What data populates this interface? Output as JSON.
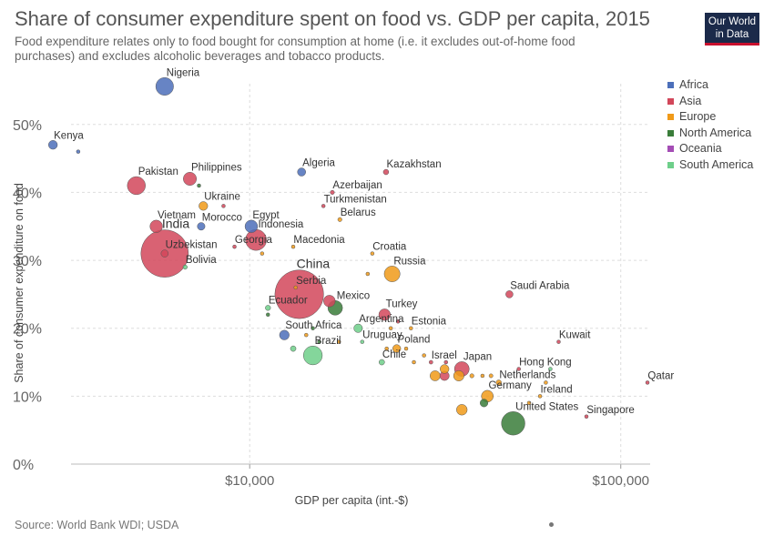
{
  "header": {
    "title": "Share of consumer expenditure spent on food vs. GDP per capita, 2015",
    "subtitle": "Food expenditure relates only to food bought for consumption at home (i.e. it excludes out-of-home food purchases) and excludes alcoholic beverages and tobacco products.",
    "logo_line1": "Our World",
    "logo_line2": "in Data"
  },
  "footer": {
    "source": "Source: World Bank WDI; USDA"
  },
  "colors": {
    "Africa": "#4c6fba",
    "Asia": "#d2475a",
    "Europe": "#f09a19",
    "North America": "#3a7d3a",
    "Oceania": "#a44db5",
    "South America": "#6ecf8a"
  },
  "chart_data": {
    "type": "scatter",
    "title": "Share of consumer expenditure spent on food vs. GDP per capita, 2015",
    "xlabel": "GDP per capita (int.-$)",
    "ylabel": "Share of consumer expenditure on food",
    "xscale": "log",
    "xlim": [
      3300,
      120000
    ],
    "ylim": [
      0,
      56
    ],
    "x_ticks": [
      10000,
      100000
    ],
    "x_tick_labels": [
      "$10,000",
      "$100,000"
    ],
    "y_ticks": [
      0,
      10,
      20,
      30,
      40,
      50
    ],
    "y_tick_labels": [
      "0%",
      "10%",
      "20%",
      "30%",
      "40%",
      "50%"
    ],
    "grid": true,
    "legend": "right",
    "legend_entries": [
      "Africa",
      "Asia",
      "Europe",
      "North America",
      "Oceania",
      "South America"
    ],
    "points": [
      {
        "label": "Nigeria",
        "region": "Africa",
        "x": 5900,
        "y": 55.6,
        "size": 182
      },
      {
        "label": "Kenya",
        "region": "Africa",
        "x": 2950,
        "y": 47.0,
        "size": 46
      },
      {
        "label": "",
        "region": "Africa",
        "x": 3450,
        "y": 46.0,
        "size": 5
      },
      {
        "label": "Philippines",
        "region": "Asia",
        "x": 6900,
        "y": 42.0,
        "size": 101
      },
      {
        "label": "Pakistan",
        "region": "Asia",
        "x": 4950,
        "y": 41.0,
        "size": 189
      },
      {
        "label": "Algeria",
        "region": "Africa",
        "x": 13800,
        "y": 43.0,
        "size": 39
      },
      {
        "label": "Kazakhstan",
        "region": "Asia",
        "x": 23300,
        "y": 43.0,
        "size": 17
      },
      {
        "label": "Azerbaijan",
        "region": "Asia",
        "x": 16700,
        "y": 40.0,
        "size": 10
      },
      {
        "label": "",
        "region": "North America",
        "x": 7300,
        "y": 41.0,
        "size": 3
      },
      {
        "label": "Ukraine",
        "region": "Europe",
        "x": 7500,
        "y": 38.0,
        "size": 45
      },
      {
        "label": "",
        "region": "Asia",
        "x": 8500,
        "y": 38.0,
        "size": 3
      },
      {
        "label": "Turkmenistan",
        "region": "Asia",
        "x": 15800,
        "y": 38.0,
        "size": 6
      },
      {
        "label": "Belarus",
        "region": "Europe",
        "x": 17500,
        "y": 36.0,
        "size": 10
      },
      {
        "label": "Vietnam",
        "region": "Asia",
        "x": 5600,
        "y": 35.0,
        "size": 92
      },
      {
        "label": "Morocco",
        "region": "Africa",
        "x": 7400,
        "y": 35.0,
        "size": 34
      },
      {
        "label": "Egypt",
        "region": "Africa",
        "x": 10100,
        "y": 35.0,
        "size": 92
      },
      {
        "label": "Indonesia",
        "region": "Asia",
        "x": 10400,
        "y": 33.0,
        "size": 255
      },
      {
        "label": "India",
        "region": "Asia",
        "x": 5900,
        "y": 31.0,
        "size": 1310
      },
      {
        "label": "Uzbekistan",
        "region": "Asia",
        "x": 5900,
        "y": 31.0,
        "size": 31
      },
      {
        "label": "Georgia",
        "region": "Asia",
        "x": 9100,
        "y": 32.0,
        "size": 4
      },
      {
        "label": "",
        "region": "Europe",
        "x": 10800,
        "y": 31.0,
        "size": 3
      },
      {
        "label": "Macedonia",
        "region": "Europe",
        "x": 13100,
        "y": 32.0,
        "size": 2
      },
      {
        "label": "Bolivia",
        "region": "South America",
        "x": 6700,
        "y": 29.0,
        "size": 11
      },
      {
        "label": "Croatia",
        "region": "Europe",
        "x": 21400,
        "y": 31.0,
        "size": 4
      },
      {
        "label": "Russia",
        "region": "Europe",
        "x": 24200,
        "y": 28.0,
        "size": 144
      },
      {
        "label": "",
        "region": "Europe",
        "x": 20800,
        "y": 28.0,
        "size": 4
      },
      {
        "label": "China",
        "region": "Asia",
        "x": 13600,
        "y": 25.0,
        "size": 1380
      },
      {
        "label": "Serbia",
        "region": "Europe",
        "x": 13300,
        "y": 26.0,
        "size": 7
      },
      {
        "label": "Mexico",
        "region": "North America",
        "x": 17000,
        "y": 23.0,
        "size": 125
      },
      {
        "label": "",
        "region": "Asia",
        "x": 16400,
        "y": 24.0,
        "size": 80
      },
      {
        "label": "Ecuador",
        "region": "South America",
        "x": 11200,
        "y": 23.0,
        "size": 16
      },
      {
        "label": "",
        "region": "North America",
        "x": 11200,
        "y": 22.0,
        "size": 3
      },
      {
        "label": "Turkey",
        "region": "Asia",
        "x": 23100,
        "y": 22.0,
        "size": 78
      },
      {
        "label": "",
        "region": "Asia",
        "x": 25100,
        "y": 21.0,
        "size": 3
      },
      {
        "label": "Argentina",
        "region": "South America",
        "x": 19600,
        "y": 20.0,
        "size": 43
      },
      {
        "label": "Estonia",
        "region": "Europe",
        "x": 27200,
        "y": 20.0,
        "size": 1
      },
      {
        "label": "",
        "region": "Europe",
        "x": 24000,
        "y": 20.0,
        "size": 2
      },
      {
        "label": "South Africa",
        "region": "Africa",
        "x": 12400,
        "y": 19.0,
        "size": 55
      },
      {
        "label": "",
        "region": "Europe",
        "x": 14200,
        "y": 19.0,
        "size": 2
      },
      {
        "label": "",
        "region": "North America",
        "x": 14800,
        "y": 20.0,
        "size": 2
      },
      {
        "label": "",
        "region": "North America",
        "x": 15400,
        "y": 18.0,
        "size": 2
      },
      {
        "label": "Uruguay",
        "region": "South America",
        "x": 20100,
        "y": 18.0,
        "size": 3
      },
      {
        "label": "",
        "region": "Europe",
        "x": 17400,
        "y": 18.0,
        "size": 2
      },
      {
        "label": "Poland",
        "region": "Europe",
        "x": 24900,
        "y": 17.0,
        "size": 38
      },
      {
        "label": "",
        "region": "Europe",
        "x": 23400,
        "y": 17.0,
        "size": 2
      },
      {
        "label": "",
        "region": "Europe",
        "x": 26400,
        "y": 17.0,
        "size": 5
      },
      {
        "label": "Brazil",
        "region": "South America",
        "x": 14800,
        "y": 16.0,
        "size": 206
      },
      {
        "label": "",
        "region": "South America",
        "x": 13100,
        "y": 17.0,
        "size": 18
      },
      {
        "label": "Chile",
        "region": "South America",
        "x": 22700,
        "y": 15.0,
        "size": 18
      },
      {
        "label": "",
        "region": "Europe",
        "x": 27700,
        "y": 15.0,
        "size": 3
      },
      {
        "label": "",
        "region": "Europe",
        "x": 29500,
        "y": 16.0,
        "size": 4
      },
      {
        "label": "Israel",
        "region": "Asia",
        "x": 30800,
        "y": 15.0,
        "size": 8
      },
      {
        "label": "",
        "region": "Asia",
        "x": 33800,
        "y": 15.0,
        "size": 5
      },
      {
        "label": "Japan",
        "region": "Asia",
        "x": 37300,
        "y": 14.0,
        "size": 127
      },
      {
        "label": "",
        "region": "Europe",
        "x": 33500,
        "y": 14.0,
        "size": 46
      },
      {
        "label": "",
        "region": "Europe",
        "x": 31600,
        "y": 13.0,
        "size": 60
      },
      {
        "label": "",
        "region": "Asia",
        "x": 33500,
        "y": 13.0,
        "size": 51
      },
      {
        "label": "",
        "region": "Europe",
        "x": 36600,
        "y": 13.0,
        "size": 64
      },
      {
        "label": "",
        "region": "Europe",
        "x": 39700,
        "y": 13.0,
        "size": 10
      },
      {
        "label": "",
        "region": "Europe",
        "x": 42400,
        "y": 13.0,
        "size": 5
      },
      {
        "label": "",
        "region": "Europe",
        "x": 44700,
        "y": 13.0,
        "size": 9
      },
      {
        "label": "Hong Kong",
        "region": "Asia",
        "x": 53100,
        "y": 14.0,
        "size": 7
      },
      {
        "label": "Netherlands",
        "region": "Europe",
        "x": 46900,
        "y": 12.0,
        "size": 17
      },
      {
        "label": "",
        "region": "Europe",
        "x": 62800,
        "y": 12.0,
        "size": 1
      },
      {
        "label": "",
        "region": "South America",
        "x": 64600,
        "y": 14.0,
        "size": 3
      },
      {
        "label": "Kuwait",
        "region": "Asia",
        "x": 68000,
        "y": 18.0,
        "size": 4
      },
      {
        "label": "Germany",
        "region": "Europe",
        "x": 43700,
        "y": 10.0,
        "size": 82
      },
      {
        "label": "",
        "region": "North America",
        "x": 42800,
        "y": 9.0,
        "size": 36
      },
      {
        "label": "Ireland",
        "region": "Europe",
        "x": 60600,
        "y": 10.0,
        "size": 5
      },
      {
        "label": "",
        "region": "Europe",
        "x": 56600,
        "y": 9.0,
        "size": 5
      },
      {
        "label": "",
        "region": "Europe",
        "x": 37300,
        "y": 8.0,
        "size": 67
      },
      {
        "label": "United States",
        "region": "North America",
        "x": 51300,
        "y": 6.0,
        "size": 321
      },
      {
        "label": "Singapore",
        "region": "Asia",
        "x": 80800,
        "y": 7.0,
        "size": 6
      },
      {
        "label": "Qatar",
        "region": "Asia",
        "x": 118000,
        "y": 12.0,
        "size": 2
      },
      {
        "label": "Saudi Arabia",
        "region": "Asia",
        "x": 50100,
        "y": 25.0,
        "size": 31
      }
    ]
  }
}
